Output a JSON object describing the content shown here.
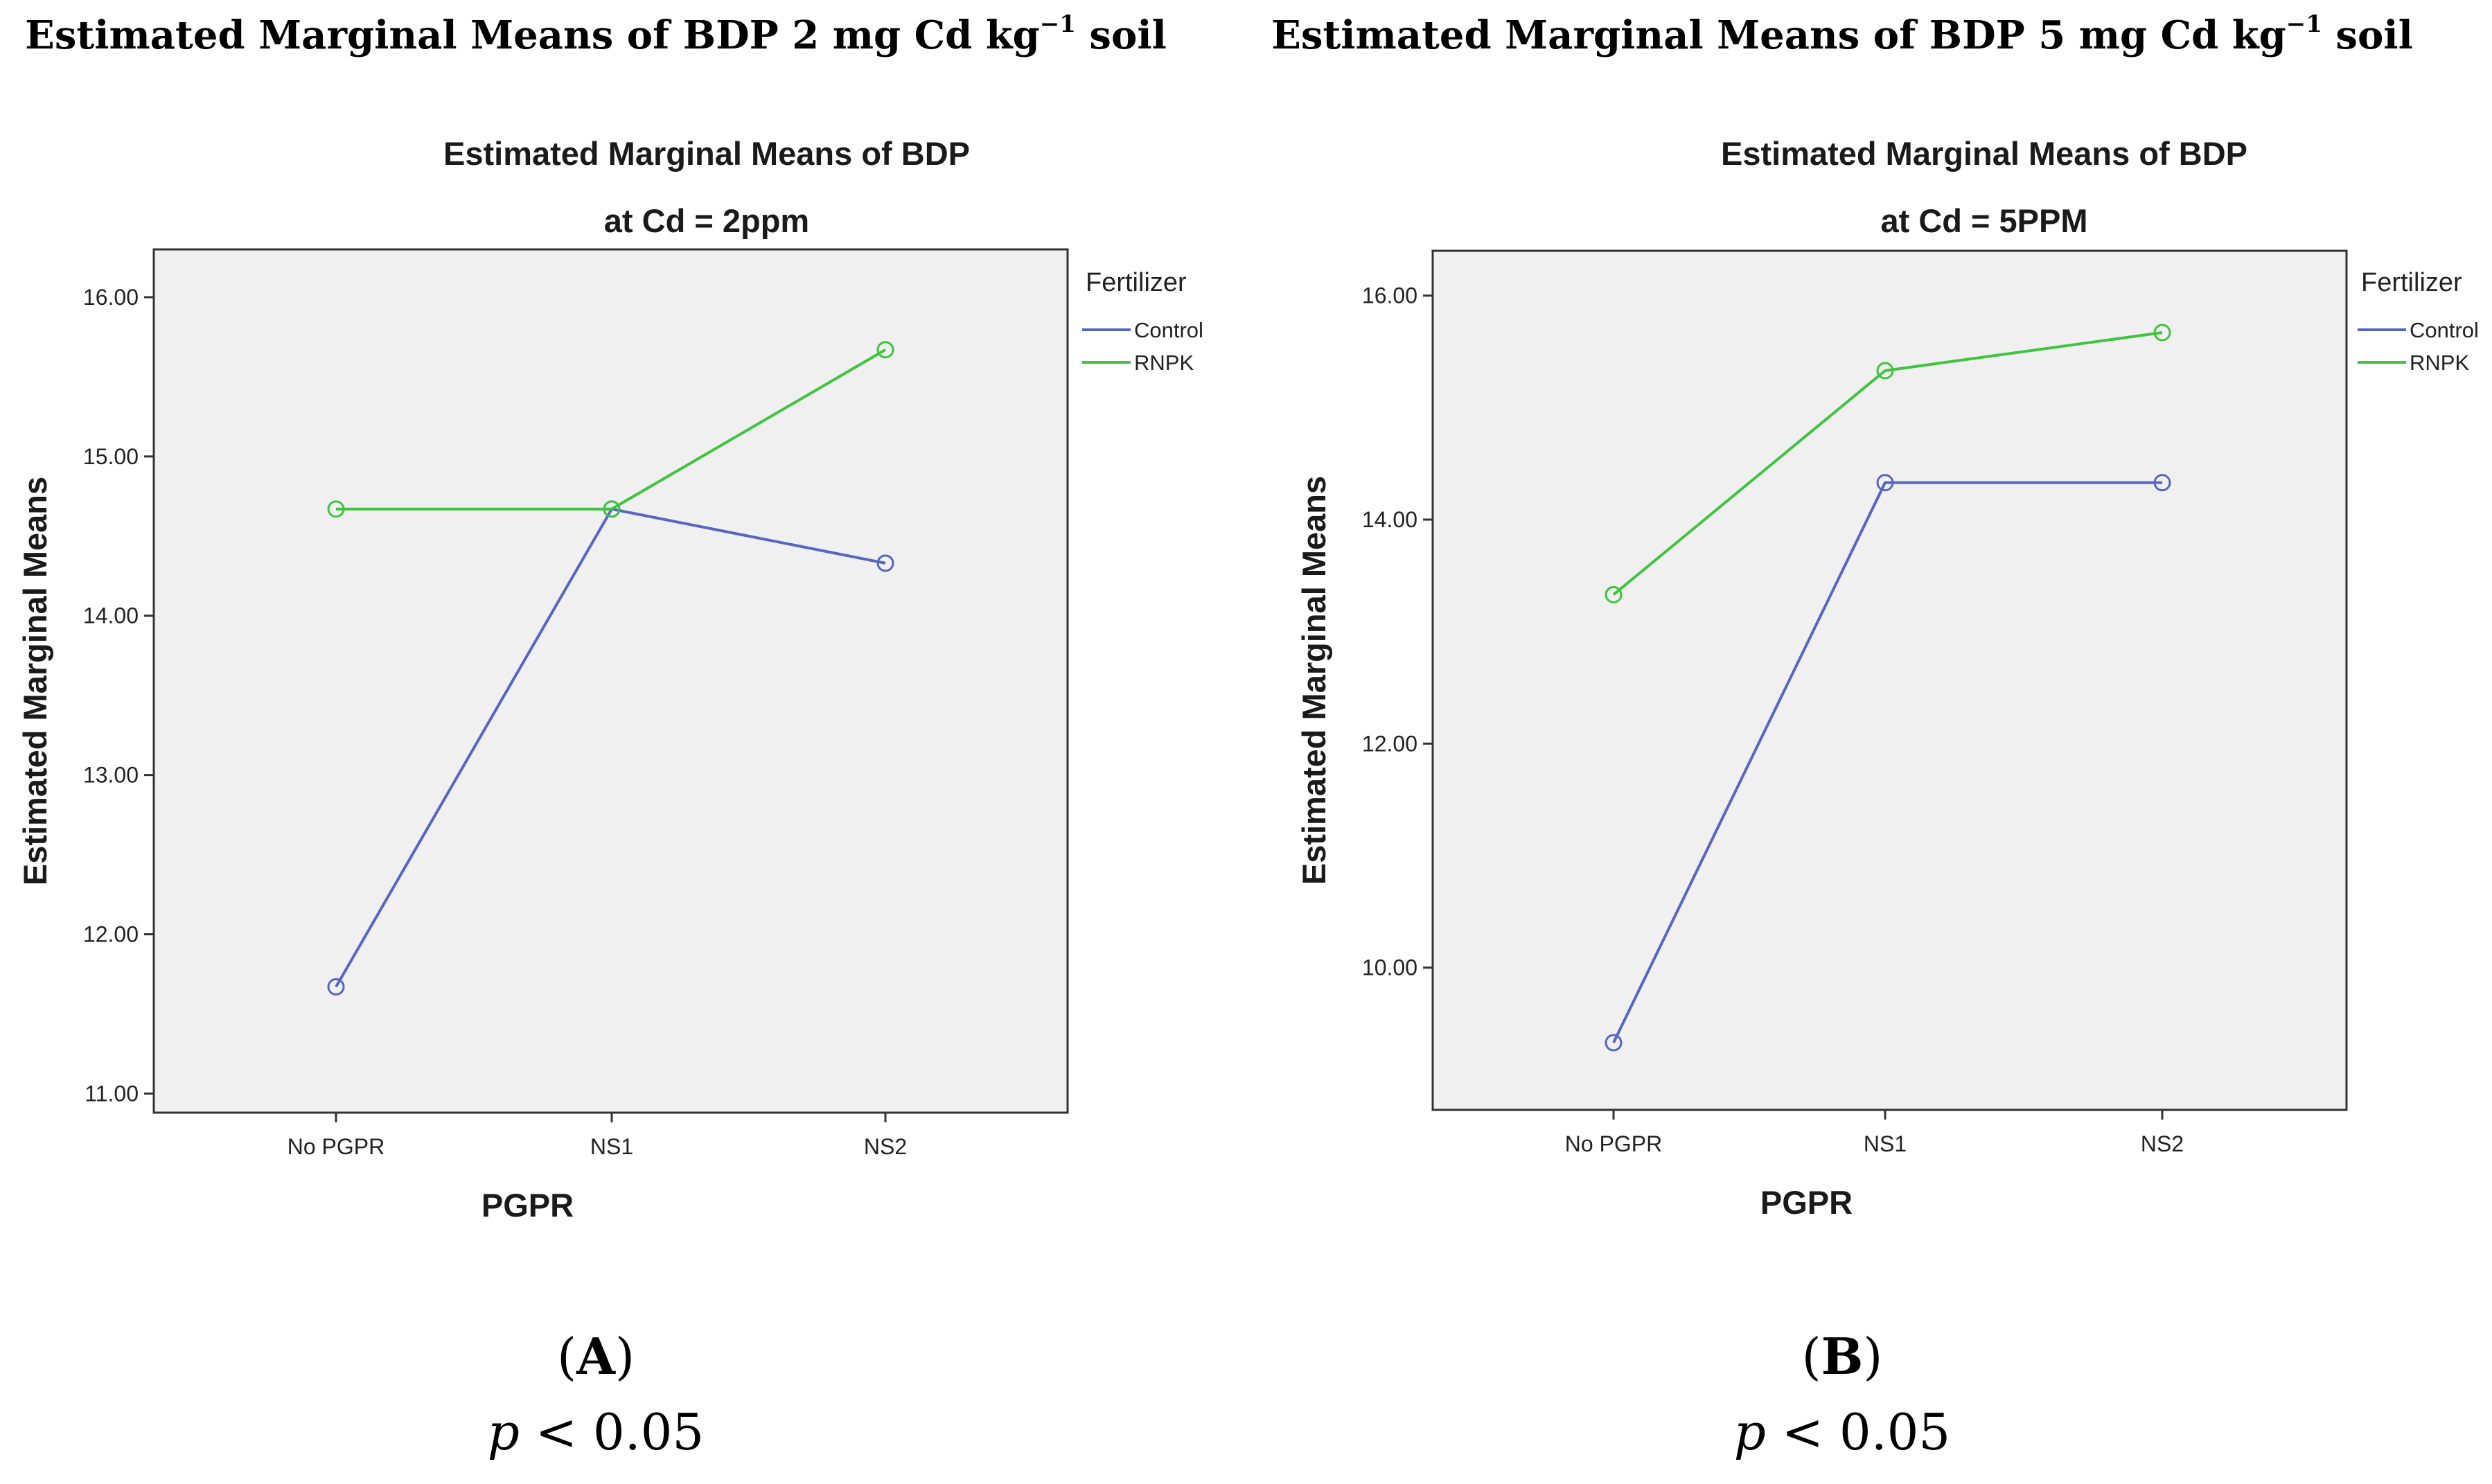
{
  "figures": [
    {
      "heading": "Estimated Marginal Means of BDP 2 mg Cd kg",
      "heading_sup": "−1",
      "heading_tail": " soil",
      "letter": "A",
      "p_symbol": "p",
      "p_rest": " < 0.05"
    },
    {
      "heading": "Estimated Marginal Means of BDP 5 mg Cd kg",
      "heading_sup": "−1",
      "heading_tail": " soil",
      "letter": "B",
      "p_symbol": "p",
      "p_rest": " < 0.05"
    }
  ],
  "chart_data": [
    {
      "type": "line",
      "title": "Estimated Marginal Means of BDP",
      "subtitle": "at Cd = 2ppm",
      "xlabel": "PGPR",
      "ylabel": "Estimated Marginal Means",
      "categories": [
        "No PGPR",
        "NS1",
        "NS2"
      ],
      "ylim": [
        10.88,
        16.3
      ],
      "yticks": [
        11,
        12,
        13,
        14,
        15,
        16
      ],
      "ytick_labels": [
        "11.00",
        "12.00",
        "13.00",
        "14.00",
        "15.00",
        "16.00"
      ],
      "legend_title": "Fertilizer",
      "legend_position": "outside-right",
      "series": [
        {
          "name": "Control",
          "color": "#5566c4",
          "values": [
            11.67,
            14.67,
            14.33
          ]
        },
        {
          "name": "RNPK",
          "color": "#3fc43f",
          "values": [
            14.67,
            14.67,
            15.67
          ]
        }
      ]
    },
    {
      "type": "line",
      "title": "Estimated Marginal Means of BDP",
      "subtitle": "at Cd = 5PPM",
      "xlabel": "PGPR",
      "ylabel": "Estimated Marginal Means",
      "categories": [
        "No PGPR",
        "NS1",
        "NS2"
      ],
      "ylim": [
        8.73,
        16.4
      ],
      "yticks": [
        10,
        12,
        14,
        16
      ],
      "ytick_labels": [
        "10.00",
        "12.00",
        "14.00",
        "16.00"
      ],
      "legend_title": "Fertilizer",
      "legend_position": "outside-right",
      "series": [
        {
          "name": "Control",
          "color": "#5566c4",
          "values": [
            9.33,
            14.33,
            14.33
          ]
        },
        {
          "name": "RNPK",
          "color": "#3fc43f",
          "values": [
            13.33,
            15.33,
            15.67
          ]
        }
      ]
    }
  ]
}
